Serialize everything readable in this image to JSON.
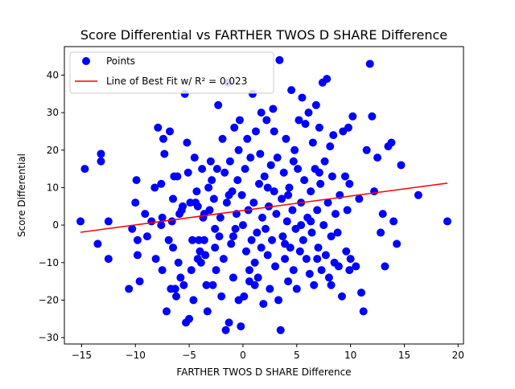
{
  "chart_data": {
    "type": "scatter",
    "title": "Score Differential vs FARTHER TWOS D SHARE Difference",
    "xlabel": "FARTHER TWOS D SHARE Difference",
    "ylabel": "Score Differential",
    "xlim": [
      -16.6,
      20.5
    ],
    "ylim": [
      -31.7,
      47.6
    ],
    "xticks": [
      -15,
      -10,
      -5,
      0,
      5,
      10,
      15,
      20
    ],
    "yticks": [
      -30,
      -20,
      -10,
      0,
      10,
      20,
      30,
      40
    ],
    "grid": false,
    "legend": {
      "placement": "top-left",
      "entries": [
        {
          "label": "Points",
          "kind": "marker",
          "color": "#0000ff"
        },
        {
          "label": "Line of Best Fit w/ R² = 0.023",
          "kind": "line",
          "color": "#ff0000"
        }
      ]
    },
    "series": [
      {
        "name": "Points",
        "color": "#0000ff",
        "points": [
          [
            -15.1,
            1
          ],
          [
            -14.7,
            15
          ],
          [
            -13.5,
            -5
          ],
          [
            -13.2,
            19
          ],
          [
            -13.2,
            17
          ],
          [
            -12.5,
            1
          ],
          [
            -12.5,
            -9
          ],
          [
            -10.6,
            -17
          ],
          [
            -10.3,
            -1
          ],
          [
            -10,
            6
          ],
          [
            -9.9,
            12
          ],
          [
            -9.8,
            -4
          ],
          [
            -9.8,
            -8
          ],
          [
            -9.6,
            -15
          ],
          [
            -9.1,
            3
          ],
          [
            -8.9,
            -3
          ],
          [
            -8.5,
            1
          ],
          [
            -8.2,
            10
          ],
          [
            -8.1,
            -9
          ],
          [
            -7.9,
            26
          ],
          [
            -7.6,
            11
          ],
          [
            -7.6,
            0
          ],
          [
            -7.5,
            2
          ],
          [
            -7.5,
            -12
          ],
          [
            -7.4,
            23
          ],
          [
            -7.3,
            19
          ],
          [
            -7.1,
            -23
          ],
          [
            -6.9,
            -4
          ],
          [
            -6.8,
            25
          ],
          [
            -6.7,
            -17
          ],
          [
            -6.6,
            1
          ],
          [
            -6.5,
            7
          ],
          [
            -6.5,
            -6
          ],
          [
            -6.4,
            13
          ],
          [
            -6.3,
            -17
          ],
          [
            -6.2,
            -19
          ],
          [
            -6.1,
            13
          ],
          [
            -6,
            -10
          ],
          [
            -5.9,
            3
          ],
          [
            -5.8,
            -14
          ],
          [
            -5.7,
            4
          ],
          [
            -5.6,
            5
          ],
          [
            -5.5,
            -16
          ],
          [
            -5.4,
            35
          ],
          [
            -5.3,
            -26
          ],
          [
            -5.2,
            22
          ],
          [
            -5.1,
            14
          ],
          [
            -5.0,
            -25
          ],
          [
            -4.9,
            6
          ],
          [
            -4.8,
            -12
          ],
          [
            -4.7,
            -4
          ],
          [
            -4.6,
            -20
          ],
          [
            -4.5,
            18
          ],
          [
            -4.4,
            6
          ],
          [
            -4.3,
            9
          ],
          [
            -4.2,
            5
          ],
          [
            -4.1,
            -4
          ],
          [
            -4,
            -7
          ],
          [
            -3.9,
            -10
          ],
          [
            -3.8,
            15
          ],
          [
            -3.7,
            2
          ],
          [
            -3.6,
            -4
          ],
          [
            -3.5,
            -8
          ],
          [
            -3.4,
            -16
          ],
          [
            -3.3,
            -23
          ],
          [
            -3.2,
            10
          ],
          [
            -3.1,
            4
          ],
          [
            -3,
            17
          ],
          [
            -2.9,
            12
          ],
          [
            -2.8,
            -16
          ],
          [
            -2.7,
            7
          ],
          [
            -2.6,
            -6
          ],
          [
            -2.5,
            -12
          ],
          [
            -2.4,
            15
          ],
          [
            -2.3,
            32
          ],
          [
            -2.2,
            -3
          ],
          [
            -2.1,
            2
          ],
          [
            -2,
            -19
          ],
          [
            -1.9,
            23
          ],
          [
            -1.8,
            -9
          ],
          [
            -1.7,
            14
          ],
          [
            -1.6,
            -28
          ],
          [
            -1.5,
            6
          ],
          [
            -1.4,
            38
          ],
          [
            -1.3,
            -26
          ],
          [
            -1.2,
            17
          ],
          [
            -1.1,
            -5
          ],
          [
            -1,
            9
          ],
          [
            -0.9,
            -14
          ],
          [
            -0.8,
            26
          ],
          [
            -0.7,
            -1
          ],
          [
            -0.6,
            3
          ],
          [
            -0.5,
            12
          ],
          [
            -0.4,
            -20
          ],
          [
            -0.3,
            28
          ],
          [
            -0.2,
            -27
          ],
          [
            -0.1,
            8
          ],
          [
            0,
            0
          ],
          [
            0.1,
            -19
          ],
          [
            0.2,
            15
          ],
          [
            0.3,
            -7
          ],
          [
            0.4,
            23
          ],
          [
            0.5,
            4
          ],
          [
            0.6,
            -12
          ],
          [
            0.7,
            18
          ],
          [
            0.8,
            -4
          ],
          [
            0.9,
            35
          ],
          [
            1,
            6
          ],
          [
            1.1,
            -10
          ],
          [
            1.2,
            25
          ],
          [
            1.3,
            -2
          ],
          [
            1.4,
            -14
          ],
          [
            1.5,
            11
          ],
          [
            1.6,
            19
          ],
          [
            1.7,
            -6
          ],
          [
            1.8,
            2
          ],
          [
            1.9,
            -21
          ],
          [
            2,
            13
          ],
          [
            2.1,
            -1
          ],
          [
            2.2,
            28
          ],
          [
            2.3,
            -8
          ],
          [
            2.4,
            5
          ],
          [
            2.5,
            -17
          ],
          [
            2.6,
            16
          ],
          [
            2.7,
            -4
          ],
          [
            2.8,
            31
          ],
          [
            2.9,
            9
          ],
          [
            3,
            -11
          ],
          [
            3.1,
            3
          ],
          [
            3.2,
            18
          ],
          [
            3.3,
            -20
          ],
          [
            3.4,
            44
          ],
          [
            3.5,
            -28
          ],
          [
            3.6,
            7
          ],
          [
            3.7,
            -3
          ],
          [
            3.8,
            14
          ],
          [
            3.9,
            -9
          ],
          [
            4,
            23
          ],
          [
            4.1,
            1
          ],
          [
            4.2,
            -15
          ],
          [
            4.3,
            10
          ],
          [
            4.4,
            -6
          ],
          [
            4.5,
            36
          ],
          [
            4.6,
            4
          ],
          [
            4.7,
            -12
          ],
          [
            4.8,
            20
          ],
          [
            4.9,
            -1
          ],
          [
            5,
            -17
          ],
          [
            5.1,
            15
          ],
          [
            5.2,
            28
          ],
          [
            5.3,
            -7
          ],
          [
            5.4,
            6
          ],
          [
            5.5,
            34
          ],
          [
            5.6,
            -4
          ],
          [
            5.7,
            12
          ],
          [
            5.8,
            27
          ],
          [
            5.9,
            -9
          ],
          [
            6,
            2
          ],
          [
            6.1,
            30
          ],
          [
            6.2,
            -13
          ],
          [
            6.3,
            9
          ],
          [
            6.4,
            -2
          ],
          [
            6.5,
            22
          ],
          [
            6.6,
            -16
          ],
          [
            6.7,
            15
          ],
          [
            6.8,
            32
          ],
          [
            6.9,
            4
          ],
          [
            7,
            -6
          ],
          [
            7.1,
            26
          ],
          [
            7.2,
            11
          ],
          [
            7.3,
            -12
          ],
          [
            7.4,
            38
          ],
          [
            7.5,
            0
          ],
          [
            7.6,
            17
          ],
          [
            7.7,
            -8
          ],
          [
            7.8,
            39
          ],
          [
            7.9,
            6
          ],
          [
            8,
            -14
          ],
          [
            8.1,
            21
          ],
          [
            8.2,
            -3
          ],
          [
            8.3,
            13
          ],
          [
            8.4,
            24
          ],
          [
            8.5,
            -10
          ],
          [
            8.6,
            3
          ],
          [
            8.8,
            -2
          ],
          [
            9,
            8
          ],
          [
            9.2,
            -19
          ],
          [
            9.3,
            25
          ],
          [
            9.5,
            13
          ],
          [
            9.6,
            -7
          ],
          [
            9.7,
            4
          ],
          [
            9.8,
            26
          ],
          [
            9.9,
            -12
          ],
          [
            10,
            -9
          ],
          [
            10.2,
            29
          ],
          [
            10.5,
            -11
          ],
          [
            10.8,
            7
          ],
          [
            11,
            -18
          ],
          [
            11.2,
            -23
          ],
          [
            11.5,
            20
          ],
          [
            11.8,
            43
          ],
          [
            12,
            29
          ],
          [
            12.2,
            9
          ],
          [
            12.5,
            18
          ],
          [
            12.8,
            -2
          ],
          [
            13,
            3
          ],
          [
            13.2,
            -11
          ],
          [
            13.5,
            21
          ],
          [
            13.8,
            22
          ],
          [
            14,
            1
          ],
          [
            14.3,
            -5
          ],
          [
            14.7,
            16
          ],
          [
            16.3,
            8
          ],
          [
            19,
            1
          ],
          [
            -2.6,
            -1
          ],
          [
            -1.3,
            8
          ],
          [
            0.6,
            -15
          ],
          [
            2.3,
            10
          ],
          [
            3.9,
            -5
          ],
          [
            5.4,
            0
          ],
          [
            6.9,
            -9
          ],
          [
            -4.2,
            -9
          ],
          [
            -0.4,
            20
          ],
          [
            1.7,
            30
          ],
          [
            4.7,
            17
          ],
          [
            7.1,
            14
          ],
          [
            8.9,
            -11
          ],
          [
            9.9,
            11
          ],
          [
            -3.6,
            3
          ],
          [
            -0.9,
            -3
          ],
          [
            1.1,
            -16
          ],
          [
            2.9,
            25
          ],
          [
            4.2,
            8
          ],
          [
            6.3,
            1
          ],
          [
            8.2,
            -16
          ]
        ]
      },
      {
        "name": "Line of Best Fit w/ R² = 0.023",
        "type": "line",
        "color": "#ff0000",
        "points": [
          [
            -15.1,
            -1.9
          ],
          [
            19,
            11.2
          ]
        ]
      }
    ]
  }
}
